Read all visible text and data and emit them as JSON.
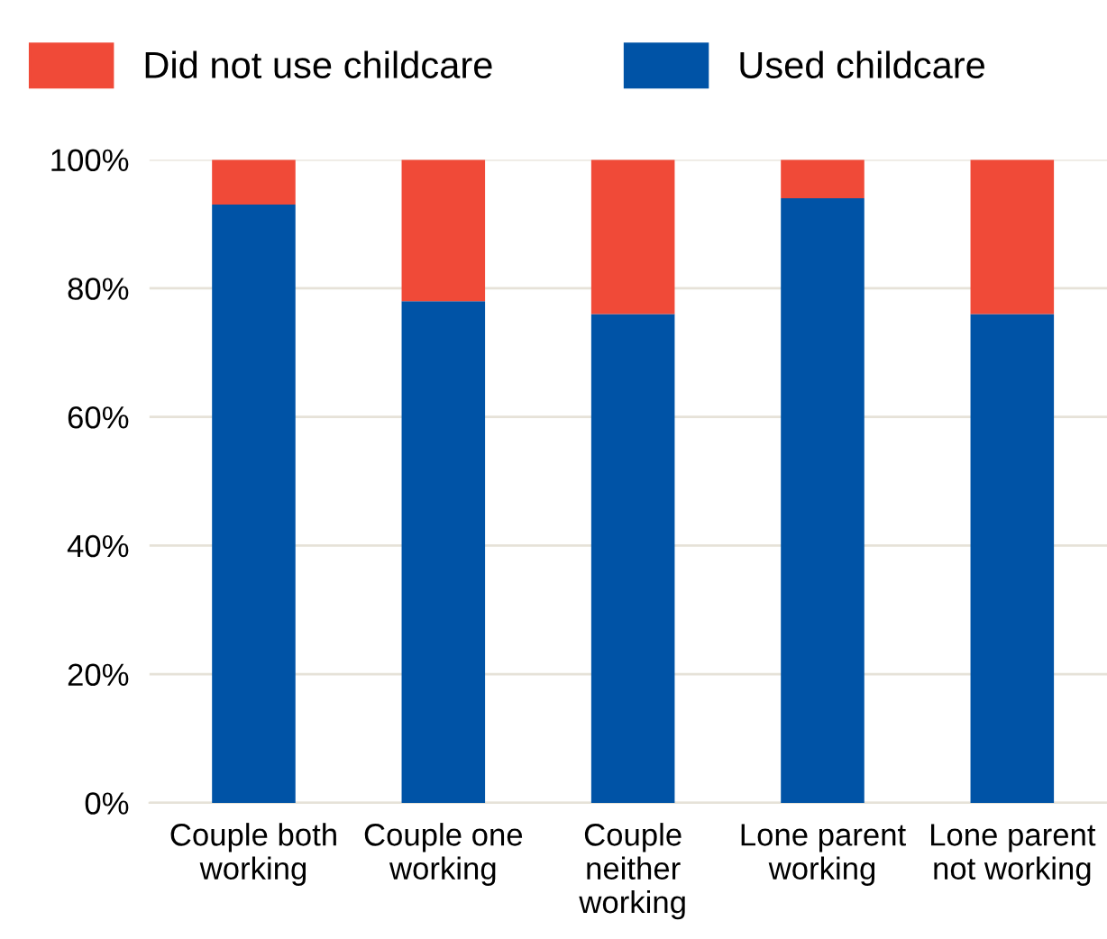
{
  "chart_data": {
    "type": "bar",
    "stacked": true,
    "categories": [
      "Couple both\nworking",
      "Couple one\nworking",
      "Couple\nneither\nworking",
      "Lone parent\nworking",
      "Lone parent\nnot working"
    ],
    "series": [
      {
        "name": "Used childcare",
        "color": "#0053a6",
        "values": [
          93,
          78,
          76,
          94,
          76
        ]
      },
      {
        "name": "Did not use childcare",
        "color": "#f04a38",
        "values": [
          7,
          22,
          24,
          6,
          24
        ]
      }
    ],
    "ylim": [
      0,
      100
    ],
    "yticks": [
      {
        "value": 0,
        "label": "0%"
      },
      {
        "value": 20,
        "label": "20%"
      },
      {
        "value": 40,
        "label": "40%"
      },
      {
        "value": 60,
        "label": "60%"
      },
      {
        "value": 80,
        "label": "80%"
      },
      {
        "value": 100,
        "label": "100%"
      }
    ],
    "grid": "y",
    "legend": "top"
  }
}
